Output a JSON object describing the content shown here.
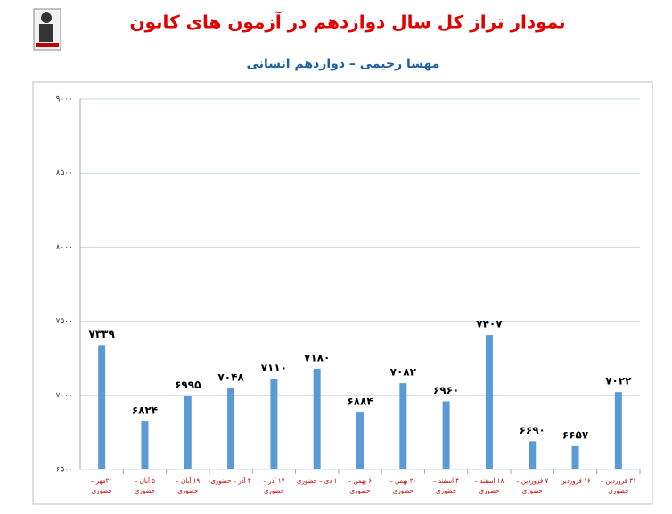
{
  "chart_data": {
    "type": "bar",
    "title": "نمودار تراز کل سال دوازدهم در آزمون های کانون",
    "subtitle": "مهسا رحیمی – دوازدهم انسانی",
    "categories": [
      "۲۱مهر – حضوری",
      "۵ آبان – حضوری",
      "۱۹ آبان – حضوری",
      "۳ آذر – حضوری",
      "۱۷ آذر – حضوری",
      "۱ دی – حضوری",
      "۶ بهمن – حضوری",
      "۲۰ بهمن – حضوری",
      "۴ اسفند – حضوری",
      "۱۸ اسفند – حضوری",
      "۷ فروردین – حضوری",
      "۱۶ فروردین",
      "۳۱ فروردین – حضوری"
    ],
    "values": [
      7339,
      6824,
      6995,
      7048,
      7110,
      7180,
      6884,
      7082,
      6960,
      7407,
      6690,
      6657,
      7022
    ],
    "value_labels": [
      "۷۳۳۹",
      "۶۸۲۴",
      "۶۹۹۵",
      "۷۰۴۸",
      "۷۱۱۰",
      "۷۱۸۰",
      "۶۸۸۴",
      "۷۰۸۲",
      "۶۹۶۰",
      "۷۴۰۷",
      "۶۶۹۰",
      "۶۶۵۷",
      "۷۰۲۲"
    ],
    "color": "#5b9bd5",
    "ylim": [
      6500,
      9000
    ],
    "yticks": [
      {
        "value": 6500,
        "label": "۶۵۰۰"
      },
      {
        "value": 7000,
        "label": "۷۰۰۰"
      },
      {
        "value": 7500,
        "label": "۷۵۰۰"
      },
      {
        "value": 8000,
        "label": "۸۰۰۰"
      },
      {
        "value": 8500,
        "label": "۸۵۰۰"
      },
      {
        "value": 9000,
        "label": "۹۰۰۰"
      }
    ],
    "grid": true
  }
}
